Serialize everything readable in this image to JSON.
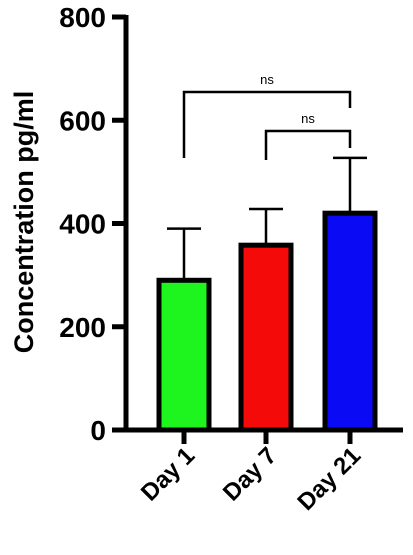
{
  "chart_data": {
    "type": "bar",
    "title": "",
    "xlabel": "",
    "ylabel": "Concentration pg/ml",
    "ylim": [
      0,
      800
    ],
    "yticks": [
      0,
      200,
      400,
      600,
      800
    ],
    "categories": [
      "Day 1",
      "Day 7",
      "Day 21"
    ],
    "values": [
      290,
      358,
      420
    ],
    "error_upper": [
      100,
      70,
      107
    ],
    "colors": [
      "#1ef51e",
      "#f50a0a",
      "#0a0af5"
    ],
    "comparisons": [
      {
        "from": "Day 1",
        "to": "Day 21",
        "label": "ns"
      },
      {
        "from": "Day 7",
        "to": "Day 21",
        "label": "ns"
      }
    ],
    "grid": false,
    "legend": "none"
  }
}
